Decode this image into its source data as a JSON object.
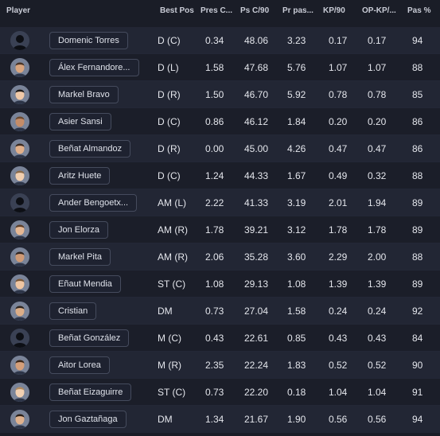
{
  "columns": {
    "player": "Player",
    "best_pos": "Best Pos",
    "pres_c": "Pres C...",
    "ps_c90": "Ps C/90",
    "pr_pas": "Pr pas...",
    "kp90": "KP/90",
    "op_kp": "OP-KP/...",
    "pas_pct": "Pas %"
  },
  "rows": [
    {
      "name": "Domenic Torres",
      "pos": "D (C)",
      "pres_c": "0.34",
      "ps_c90": "48.06",
      "pr_pas": "3.23",
      "kp90": "0.17",
      "op_kp": "0.17",
      "pas_pct": "94",
      "avatar": "silhouette-icon"
    },
    {
      "name": "Álex Fernandore...",
      "pos": "D (L)",
      "pres_c": "1.58",
      "ps_c90": "47.68",
      "pr_pas": "5.76",
      "kp90": "1.07",
      "op_kp": "1.07",
      "pas_pct": "88",
      "avatar": "player-photo"
    },
    {
      "name": "Markel Bravo",
      "pos": "D (R)",
      "pres_c": "1.50",
      "ps_c90": "46.70",
      "pr_pas": "5.92",
      "kp90": "0.78",
      "op_kp": "0.78",
      "pas_pct": "85",
      "avatar": "player-photo"
    },
    {
      "name": "Asier Sansi",
      "pos": "D (C)",
      "pres_c": "0.86",
      "ps_c90": "46.12",
      "pr_pas": "1.84",
      "kp90": "0.20",
      "op_kp": "0.20",
      "pas_pct": "86",
      "avatar": "player-photo"
    },
    {
      "name": "Beñat Almandoz",
      "pos": "D (R)",
      "pres_c": "0.00",
      "ps_c90": "45.00",
      "pr_pas": "4.26",
      "kp90": "0.47",
      "op_kp": "0.47",
      "pas_pct": "86",
      "avatar": "player-photo"
    },
    {
      "name": "Aritz Huete",
      "pos": "D (C)",
      "pres_c": "1.24",
      "ps_c90": "44.33",
      "pr_pas": "1.67",
      "kp90": "0.49",
      "op_kp": "0.32",
      "pas_pct": "88",
      "avatar": "player-photo"
    },
    {
      "name": "Ander Bengoetx...",
      "pos": "AM (L)",
      "pres_c": "2.22",
      "ps_c90": "41.33",
      "pr_pas": "3.19",
      "kp90": "2.01",
      "op_kp": "1.94",
      "pas_pct": "89",
      "avatar": "silhouette-icon"
    },
    {
      "name": "Jon Elorza",
      "pos": "AM (R)",
      "pres_c": "1.78",
      "ps_c90": "39.21",
      "pr_pas": "3.12",
      "kp90": "1.78",
      "op_kp": "1.78",
      "pas_pct": "89",
      "avatar": "player-photo"
    },
    {
      "name": "Markel Pita",
      "pos": "AM (R)",
      "pres_c": "2.06",
      "ps_c90": "35.28",
      "pr_pas": "3.60",
      "kp90": "2.29",
      "op_kp": "2.00",
      "pas_pct": "88",
      "avatar": "player-photo"
    },
    {
      "name": "Eñaut Mendia",
      "pos": "ST (C)",
      "pres_c": "1.08",
      "ps_c90": "29.13",
      "pr_pas": "1.08",
      "kp90": "1.39",
      "op_kp": "1.39",
      "pas_pct": "89",
      "avatar": "player-photo"
    },
    {
      "name": "Cristian",
      "pos": "DM",
      "pres_c": "0.73",
      "ps_c90": "27.04",
      "pr_pas": "1.58",
      "kp90": "0.24",
      "op_kp": "0.24",
      "pas_pct": "92",
      "avatar": "player-photo"
    },
    {
      "name": "Beñat González",
      "pos": "M (C)",
      "pres_c": "0.43",
      "ps_c90": "22.61",
      "pr_pas": "0.85",
      "kp90": "0.43",
      "op_kp": "0.43",
      "pas_pct": "84",
      "avatar": "silhouette-icon"
    },
    {
      "name": "Aitor Lorea",
      "pos": "M (R)",
      "pres_c": "2.35",
      "ps_c90": "22.24",
      "pr_pas": "1.83",
      "kp90": "0.52",
      "op_kp": "0.52",
      "pas_pct": "90",
      "avatar": "player-photo"
    },
    {
      "name": "Beñat Eizaguirre",
      "pos": "ST (C)",
      "pres_c": "0.73",
      "ps_c90": "22.20",
      "pr_pas": "0.18",
      "kp90": "1.04",
      "op_kp": "1.04",
      "pas_pct": "91",
      "avatar": "player-photo"
    },
    {
      "name": "Jon Gaztañaga",
      "pos": "DM",
      "pres_c": "1.34",
      "ps_c90": "21.67",
      "pr_pas": "1.90",
      "kp90": "0.56",
      "op_kp": "0.56",
      "pas_pct": "94",
      "avatar": "player-photo"
    }
  ]
}
